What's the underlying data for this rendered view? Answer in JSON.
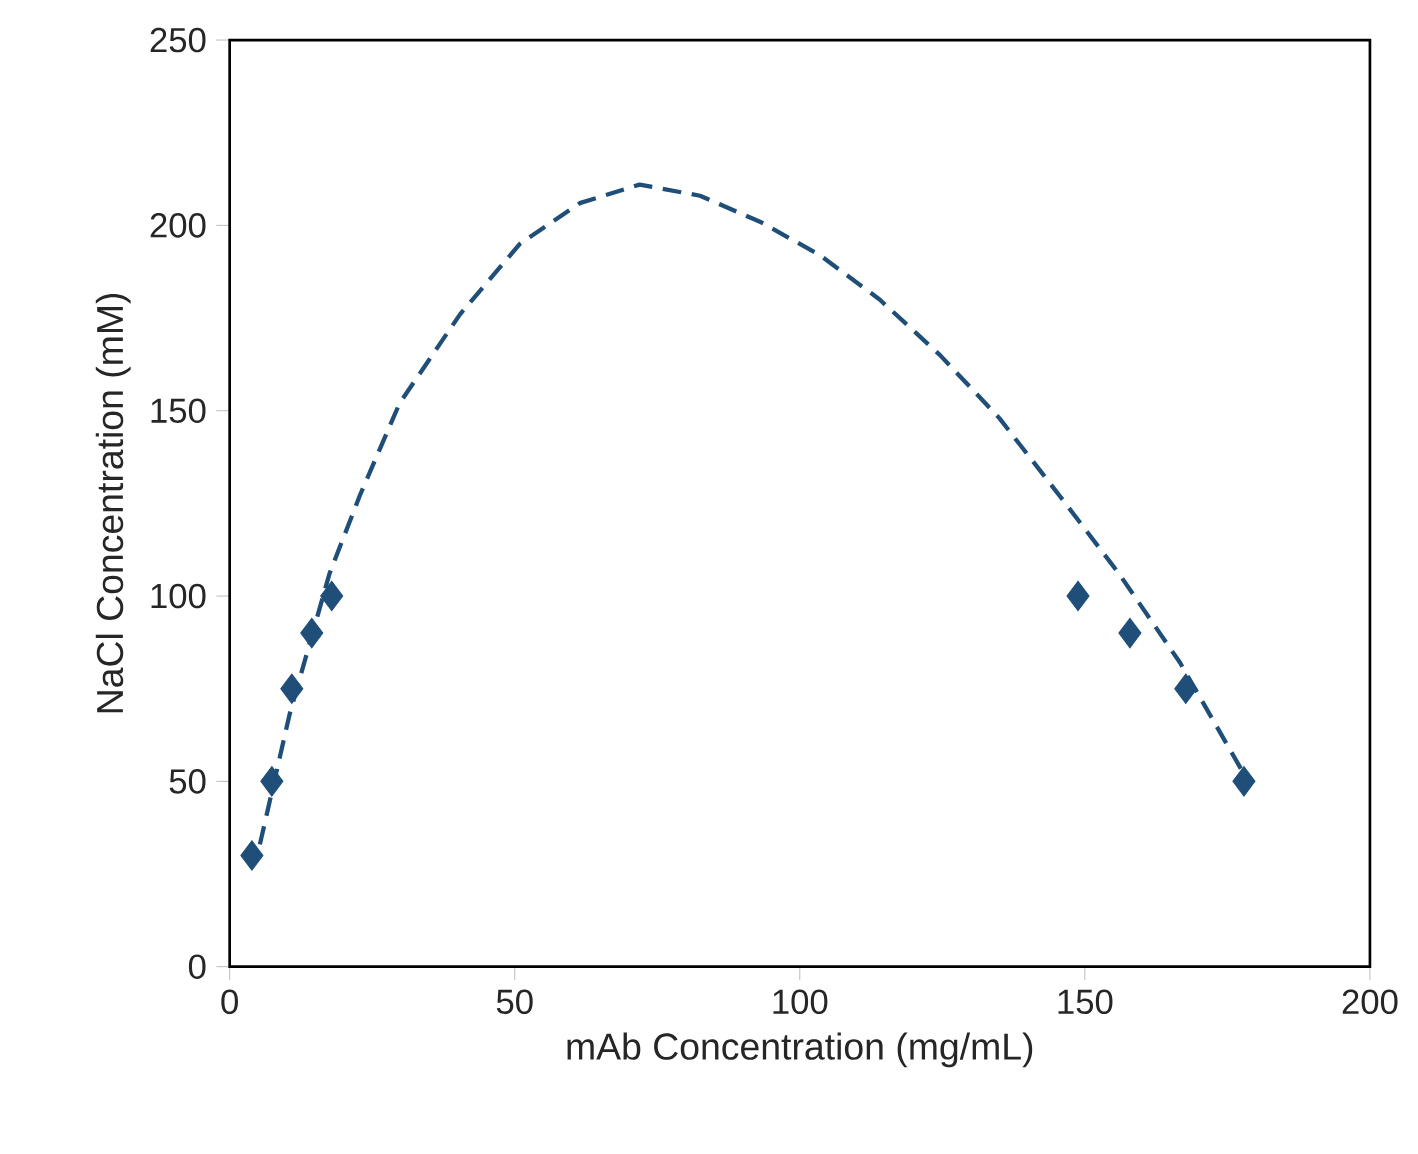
{
  "chart_data": {
    "type": "scatter",
    "xlabel": "mAb Concentration (mg/mL)",
    "ylabel": "NaCl Concentration (mM)",
    "xlim": [
      0,
      200
    ],
    "ylim": [
      0,
      250
    ],
    "xticks": [
      0,
      50,
      100,
      150,
      200
    ],
    "yticks": [
      0,
      50,
      100,
      150,
      200,
      250
    ],
    "grid": false,
    "series": [
      {
        "color": "#1f4e79",
        "marker": "diamond",
        "x": [
          3.9,
          7.4,
          10.9,
          14.4,
          17.9,
          148.8,
          157.9,
          167.7,
          177.9
        ],
        "values": [
          30,
          50,
          75,
          90,
          100,
          100,
          90,
          75,
          50
        ]
      },
      {
        "type": "line",
        "color": "#1f4e79",
        "marker": "none",
        "line_style": "dashed",
        "x": [
          5.3,
          10.5,
          17.5,
          22.8,
          29.8,
          40.4,
          50.9,
          61.4,
          71.9,
          82.5,
          93,
          103.5,
          114,
          124.6,
          135,
          145.6,
          156,
          166.7,
          177.9
        ],
        "values": [
          33,
          68,
          106,
          127,
          152,
          176,
          195,
          206,
          211,
          208,
          201,
          192,
          180,
          165,
          148,
          127,
          106,
          82,
          52
        ]
      }
    ]
  }
}
